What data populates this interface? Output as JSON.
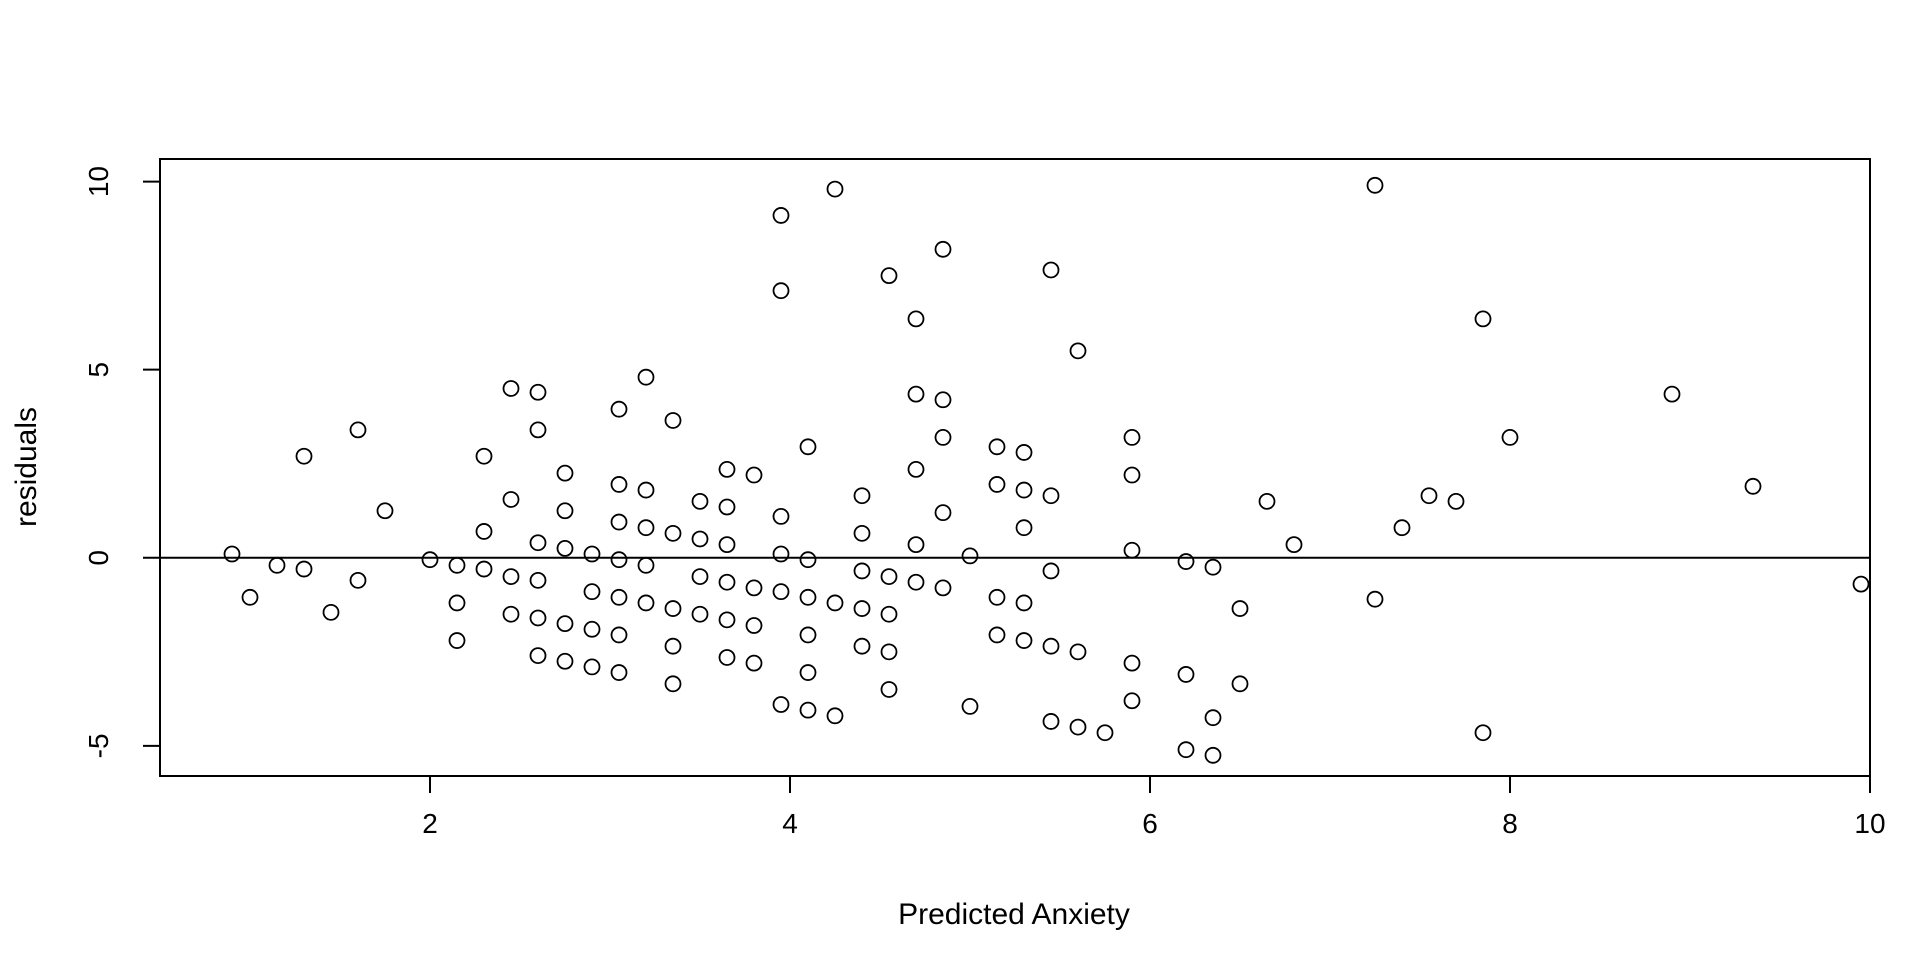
{
  "chart_data": {
    "type": "scatter",
    "title": "",
    "xlabel": "Predicted Anxiety",
    "ylabel": "residuals",
    "xlim": [
      0.5,
      10
    ],
    "ylim": [
      -5.8,
      10.6
    ],
    "x_ticks": [
      2,
      4,
      6,
      8,
      10
    ],
    "y_ticks": [
      -5,
      0,
      5,
      10
    ],
    "x_tick_labels": [
      "2",
      "4",
      "6",
      "8",
      "10"
    ],
    "y_tick_labels": [
      "-5",
      "0",
      "5",
      "10"
    ],
    "reference_line": {
      "orientation": "horizontal",
      "y": 0
    },
    "grid": false,
    "colors": {
      "points": "#000000",
      "axes": "#000000",
      "background": "#ffffff"
    },
    "series": [
      {
        "points": [
          [
            0.9,
            0.1
          ],
          [
            1.0,
            -1.05
          ],
          [
            1.15,
            -0.2
          ],
          [
            1.3,
            2.7
          ],
          [
            1.3,
            -0.3
          ],
          [
            1.45,
            -1.45
          ],
          [
            1.6,
            3.4
          ],
          [
            1.6,
            -0.6
          ],
          [
            1.75,
            1.25
          ],
          [
            2.0,
            -0.05
          ],
          [
            2.15,
            -0.2
          ],
          [
            2.15,
            -1.2
          ],
          [
            2.15,
            -2.2
          ],
          [
            2.3,
            2.7
          ],
          [
            2.3,
            0.7
          ],
          [
            2.3,
            -0.3
          ],
          [
            2.45,
            4.5
          ],
          [
            2.45,
            1.55
          ],
          [
            2.45,
            -0.5
          ],
          [
            2.45,
            -1.5
          ],
          [
            2.6,
            4.4
          ],
          [
            2.6,
            3.4
          ],
          [
            2.6,
            0.4
          ],
          [
            2.6,
            -0.6
          ],
          [
            2.6,
            -1.6
          ],
          [
            2.6,
            -2.6
          ],
          [
            2.75,
            2.25
          ],
          [
            2.75,
            1.25
          ],
          [
            2.75,
            0.25
          ],
          [
            2.75,
            -1.75
          ],
          [
            2.75,
            -2.75
          ],
          [
            2.9,
            0.1
          ],
          [
            2.9,
            -0.9
          ],
          [
            2.9,
            -1.9
          ],
          [
            2.9,
            -2.9
          ],
          [
            3.05,
            3.95
          ],
          [
            3.05,
            1.95
          ],
          [
            3.05,
            0.95
          ],
          [
            3.05,
            -0.05
          ],
          [
            3.05,
            -1.05
          ],
          [
            3.05,
            -2.05
          ],
          [
            3.05,
            -3.05
          ],
          [
            3.2,
            4.8
          ],
          [
            3.2,
            1.8
          ],
          [
            3.2,
            0.8
          ],
          [
            3.2,
            -0.2
          ],
          [
            3.2,
            -1.2
          ],
          [
            3.35,
            3.65
          ],
          [
            3.35,
            0.65
          ],
          [
            3.35,
            -1.35
          ],
          [
            3.35,
            -2.35
          ],
          [
            3.35,
            -3.35
          ],
          [
            3.5,
            1.5
          ],
          [
            3.5,
            0.5
          ],
          [
            3.5,
            -0.5
          ],
          [
            3.5,
            -1.5
          ],
          [
            3.65,
            2.35
          ],
          [
            3.65,
            1.35
          ],
          [
            3.65,
            0.35
          ],
          [
            3.65,
            -0.65
          ],
          [
            3.65,
            -1.65
          ],
          [
            3.65,
            -2.65
          ],
          [
            3.8,
            2.2
          ],
          [
            3.8,
            -0.8
          ],
          [
            3.8,
            -1.8
          ],
          [
            3.8,
            -2.8
          ],
          [
            3.95,
            9.1
          ],
          [
            3.95,
            7.1
          ],
          [
            3.95,
            1.1
          ],
          [
            3.95,
            0.1
          ],
          [
            3.95,
            -0.9
          ],
          [
            3.95,
            -3.9
          ],
          [
            4.1,
            2.95
          ],
          [
            4.1,
            -0.05
          ],
          [
            4.1,
            -1.05
          ],
          [
            4.1,
            -2.05
          ],
          [
            4.1,
            -3.05
          ],
          [
            4.1,
            -4.05
          ],
          [
            4.25,
            9.8
          ],
          [
            4.25,
            -1.2
          ],
          [
            4.25,
            -4.2
          ],
          [
            4.4,
            1.65
          ],
          [
            4.4,
            0.65
          ],
          [
            4.4,
            -0.35
          ],
          [
            4.4,
            -1.35
          ],
          [
            4.4,
            -2.35
          ],
          [
            4.55,
            7.5
          ],
          [
            4.55,
            -0.5
          ],
          [
            4.55,
            -1.5
          ],
          [
            4.55,
            -2.5
          ],
          [
            4.55,
            -3.5
          ],
          [
            4.7,
            6.35
          ],
          [
            4.7,
            4.35
          ],
          [
            4.7,
            2.35
          ],
          [
            4.7,
            0.35
          ],
          [
            4.7,
            -0.65
          ],
          [
            4.85,
            8.2
          ],
          [
            4.85,
            4.2
          ],
          [
            4.85,
            3.2
          ],
          [
            4.85,
            1.2
          ],
          [
            4.85,
            -0.8
          ],
          [
            5.0,
            0.05
          ],
          [
            5.0,
            -3.95
          ],
          [
            5.15,
            2.95
          ],
          [
            5.15,
            1.95
          ],
          [
            5.15,
            -1.05
          ],
          [
            5.15,
            -2.05
          ],
          [
            5.3,
            2.8
          ],
          [
            5.3,
            1.8
          ],
          [
            5.3,
            0.8
          ],
          [
            5.3,
            -1.2
          ],
          [
            5.3,
            -2.2
          ],
          [
            5.45,
            7.65
          ],
          [
            5.45,
            1.65
          ],
          [
            5.45,
            -0.35
          ],
          [
            5.45,
            -2.35
          ],
          [
            5.45,
            -4.35
          ],
          [
            5.6,
            5.5
          ],
          [
            5.6,
            -2.5
          ],
          [
            5.6,
            -4.5
          ],
          [
            5.75,
            -4.65
          ],
          [
            5.9,
            3.2
          ],
          [
            5.9,
            2.2
          ],
          [
            5.9,
            0.2
          ],
          [
            5.9,
            -2.8
          ],
          [
            5.9,
            -3.8
          ],
          [
            6.2,
            -0.1
          ],
          [
            6.2,
            -3.1
          ],
          [
            6.2,
            -5.1
          ],
          [
            6.35,
            -0.25
          ],
          [
            6.35,
            -4.25
          ],
          [
            6.35,
            -5.25
          ],
          [
            6.5,
            -1.35
          ],
          [
            6.5,
            -3.35
          ],
          [
            6.65,
            1.5
          ],
          [
            6.8,
            0.35
          ],
          [
            7.25,
            9.9
          ],
          [
            7.25,
            -1.1
          ],
          [
            7.4,
            0.8
          ],
          [
            7.55,
            1.65
          ],
          [
            7.7,
            1.5
          ],
          [
            7.85,
            6.35
          ],
          [
            7.85,
            -4.65
          ],
          [
            8.0,
            3.2
          ],
          [
            8.9,
            4.35
          ],
          [
            9.35,
            1.9
          ],
          [
            9.95,
            -0.7
          ]
        ]
      }
    ]
  }
}
